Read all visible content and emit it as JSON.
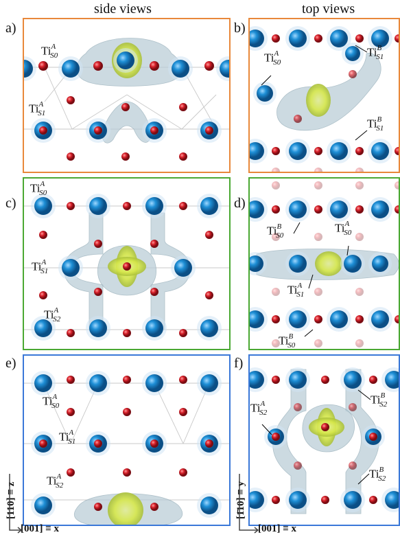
{
  "columns": {
    "side": "side views",
    "top": "top views"
  },
  "panels": [
    {
      "id": "a",
      "label": "a)",
      "border": "#e8883a",
      "labels": [
        {
          "base": "Ti",
          "sup": "A",
          "sub": "S0"
        },
        {
          "base": "Ti",
          "sup": "A",
          "sub": "S1"
        }
      ]
    },
    {
      "id": "b",
      "label": "b)",
      "border": "#e8883a",
      "labels": [
        {
          "base": "Ti",
          "sup": "A",
          "sub": "S0"
        },
        {
          "base": "Ti",
          "sup": "B",
          "sub": "S1"
        },
        {
          "base": "Ti",
          "sup": "B",
          "sub": "S1"
        }
      ]
    },
    {
      "id": "c",
      "label": "c)",
      "border": "#4aa832",
      "labels": [
        {
          "base": "Ti",
          "sup": "A",
          "sub": "S0"
        },
        {
          "base": "Ti",
          "sup": "A",
          "sub": "S1"
        },
        {
          "base": "Ti",
          "sup": "A",
          "sub": "S2"
        }
      ]
    },
    {
      "id": "d",
      "label": "d)",
      "border": "#4aa832",
      "labels": [
        {
          "base": "Ti",
          "sup": "B",
          "sub": "S0"
        },
        {
          "base": "Ti",
          "sup": "A",
          "sub": "S0"
        },
        {
          "base": "Ti",
          "sup": "A",
          "sub": "S1"
        },
        {
          "base": "Ti",
          "sup": "B",
          "sub": "S0"
        }
      ]
    },
    {
      "id": "e",
      "label": "e)",
      "border": "#3a78d8",
      "labels": [
        {
          "base": "Ti",
          "sup": "A",
          "sub": "S0"
        },
        {
          "base": "Ti",
          "sup": "A",
          "sub": "S1"
        },
        {
          "base": "Ti",
          "sup": "A",
          "sub": "S2"
        }
      ]
    },
    {
      "id": "f",
      "label": "f)",
      "border": "#3a78d8",
      "labels": [
        {
          "base": "Ti",
          "sup": "A",
          "sub": "S2"
        },
        {
          "base": "Ti",
          "sup": "B",
          "sub": "S2"
        },
        {
          "base": "Ti",
          "sup": "B",
          "sub": "S2"
        }
      ]
    }
  ],
  "axes": {
    "side_y": "[110] ≡ z",
    "top_y": "[1̄10] ≡ y",
    "x": "[001] ≡ x"
  },
  "colors": {
    "ti": "#1e8fd6",
    "o": "#d7202a",
    "cloud": "#b9cdd6",
    "core": "#d7e84a"
  }
}
